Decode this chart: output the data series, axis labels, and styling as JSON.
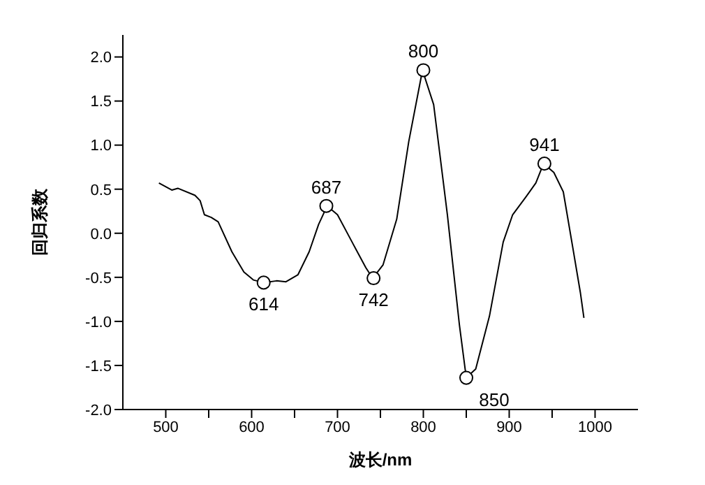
{
  "chart_data": {
    "type": "line",
    "xlabel": "波长/nm",
    "ylabel": "回归系数",
    "xlim": [
      450,
      1050
    ],
    "ylim": [
      -2,
      2.25
    ],
    "xticks": [
      500,
      {
        "value": 550,
        "label": null
      },
      600,
      {
        "value": 650,
        "label": null
      },
      700,
      {
        "value": 750,
        "label": null
      },
      800,
      {
        "value": 850,
        "label": null
      },
      900,
      {
        "value": 950,
        "label": null
      },
      1000
    ],
    "yticks": [
      {
        "value": -2,
        "label": "-2.0"
      },
      {
        "value": -1.5,
        "label": "-1.5"
      },
      {
        "value": -1,
        "label": "-1.0"
      },
      {
        "value": -0.5,
        "label": "-0.5"
      },
      {
        "value": 0,
        "label": "0.0"
      },
      {
        "value": 0.5,
        "label": "0.5"
      },
      {
        "value": 1,
        "label": "1.0"
      },
      {
        "value": 1.5,
        "label": "1.5"
      },
      {
        "value": 2,
        "label": "2.0"
      }
    ],
    "grid": false,
    "legend": false,
    "series": [
      {
        "color": "#000000",
        "marker": "none",
        "x": [
          492,
          507,
          514,
          534,
          540,
          545,
          553,
          561,
          577,
          591,
          602,
          614,
          629,
          640,
          654,
          667,
          678,
          688,
          700,
          717,
          733,
          741,
          753,
          769,
          783,
          799,
          812,
          828,
          842,
          850,
          861,
          877,
          893,
          904,
          920,
          931,
          940,
          952,
          963,
          974,
          983,
          987
        ],
        "values": [
          0.57,
          0.49,
          0.51,
          0.43,
          0.37,
          0.21,
          0.18,
          0.13,
          -0.21,
          -0.44,
          -0.53,
          -0.56,
          -0.54,
          -0.55,
          -0.47,
          -0.21,
          0.1,
          0.31,
          0.21,
          -0.1,
          -0.39,
          -0.51,
          -0.36,
          0.16,
          1.04,
          1.85,
          1.46,
          0.21,
          -1.04,
          -1.64,
          -1.54,
          -0.94,
          -0.1,
          0.21,
          0.42,
          0.57,
          0.79,
          0.69,
          0.47,
          -0.16,
          -0.68,
          -0.96
        ]
      },
      {
        "type": "scatter",
        "color": "#000000",
        "marker": "circle",
        "x": [
          614,
          687,
          742,
          800,
          850,
          941
        ],
        "values": [
          -0.56,
          0.31,
          -0.51,
          1.85,
          -1.64,
          0.79
        ]
      }
    ],
    "annotations": [
      {
        "text": "614",
        "x": 614,
        "y": -0.56
      },
      {
        "text": "687",
        "x": 687,
        "y": 0.31
      },
      {
        "text": "742",
        "x": 742,
        "y": -0.51
      },
      {
        "text": "800",
        "x": 800,
        "y": 1.85
      },
      {
        "text": "850",
        "x": 850,
        "y": -1.64
      },
      {
        "text": "941",
        "x": 941,
        "y": 0.79
      }
    ]
  }
}
